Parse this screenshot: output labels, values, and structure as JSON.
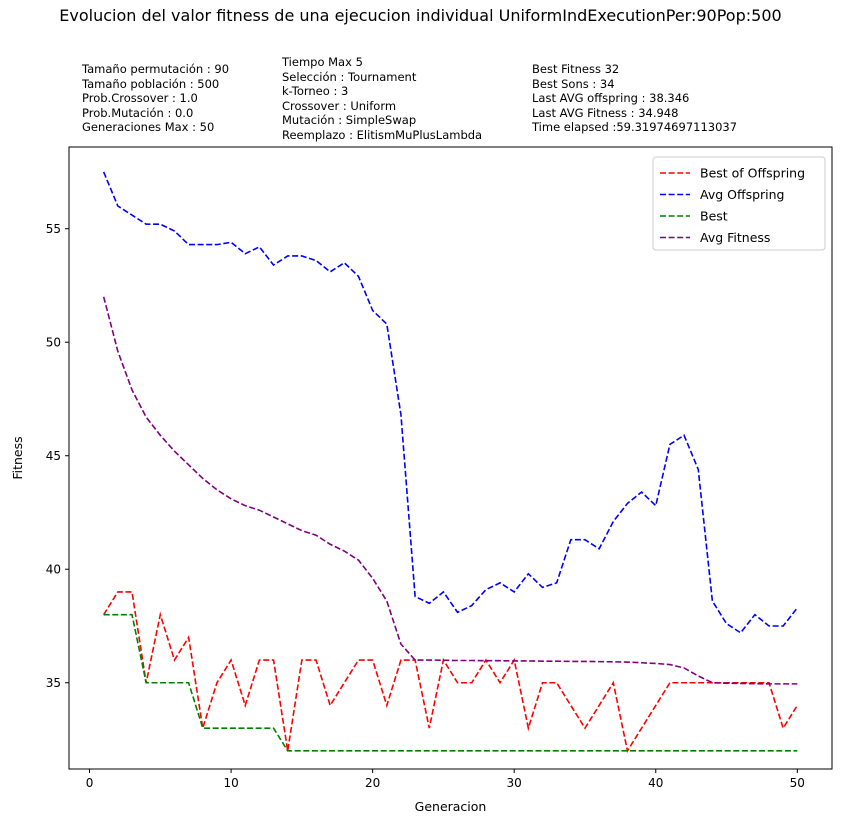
{
  "chart_data": {
    "type": "line",
    "title": "Evolucion del valor fitness de una ejecucion individual UniformIndExecutionPer:90Pop:500",
    "xlabel": "Generacion",
    "ylabel": "Fitness",
    "xlim": [
      -1.45,
      52.45
    ],
    "ylim": [
      31.2,
      58.6
    ],
    "xticks": [
      0,
      10,
      20,
      30,
      40,
      50
    ],
    "yticks": [
      35,
      40,
      45,
      50,
      55
    ],
    "grid": false,
    "legend_position": "top-right",
    "x": [
      1,
      2,
      3,
      4,
      5,
      6,
      7,
      8,
      9,
      10,
      11,
      12,
      13,
      14,
      15,
      16,
      17,
      18,
      19,
      20,
      21,
      22,
      23,
      24,
      25,
      26,
      27,
      28,
      29,
      30,
      31,
      32,
      33,
      34,
      35,
      36,
      37,
      38,
      39,
      40,
      41,
      42,
      43,
      44,
      45,
      46,
      47,
      48,
      49,
      50
    ],
    "series": [
      {
        "name": "Best of Offspring",
        "color": "#ff0000",
        "dash": "dashed",
        "values": [
          38,
          39,
          39,
          35,
          38,
          36,
          37,
          33,
          35,
          36,
          34,
          36,
          36,
          32,
          36,
          36,
          34,
          35,
          36,
          36,
          34,
          36,
          36,
          33,
          36,
          35,
          35,
          36,
          35,
          36,
          33,
          35,
          35,
          34,
          33,
          34,
          35,
          32,
          33,
          34,
          35,
          35,
          35,
          35,
          35,
          35,
          35,
          35,
          33,
          34
        ]
      },
      {
        "name": "Avg Offspring",
        "color": "#0000ff",
        "dash": "dashed",
        "values": [
          57.5,
          56.0,
          55.6,
          55.2,
          55.2,
          54.9,
          54.3,
          54.3,
          54.3,
          54.4,
          53.9,
          54.2,
          53.4,
          53.8,
          53.8,
          53.6,
          53.1,
          53.5,
          52.9,
          51.4,
          50.8,
          46.8,
          38.8,
          38.5,
          39.0,
          38.1,
          38.4,
          39.1,
          39.4,
          39.0,
          39.8,
          39.2,
          39.4,
          41.3,
          41.3,
          40.9,
          42.1,
          42.9,
          43.4,
          42.8,
          45.5,
          45.9,
          44.4,
          38.6,
          37.6,
          37.2,
          38.0,
          37.5,
          37.5,
          38.3
        ]
      },
      {
        "name": "Best",
        "color": "#008000",
        "dash": "dashed",
        "values": [
          38,
          38,
          38,
          35,
          35,
          35,
          35,
          33,
          33,
          33,
          33,
          33,
          33,
          32,
          32,
          32,
          32,
          32,
          32,
          32,
          32,
          32,
          32,
          32,
          32,
          32,
          32,
          32,
          32,
          32,
          32,
          32,
          32,
          32,
          32,
          32,
          32,
          32,
          32,
          32,
          32,
          32,
          32,
          32,
          32,
          32,
          32,
          32,
          32,
          32
        ]
      },
      {
        "name": "Avg Fitness",
        "color": "#800080",
        "dash": "dashed",
        "values": [
          52.0,
          49.6,
          47.9,
          46.7,
          45.9,
          45.2,
          44.6,
          44.0,
          43.5,
          43.1,
          42.8,
          42.6,
          42.3,
          42.0,
          41.7,
          41.5,
          41.1,
          40.8,
          40.4,
          39.6,
          38.6,
          36.7,
          36.0,
          36.0,
          35.99,
          35.98,
          35.98,
          35.97,
          35.97,
          35.96,
          35.96,
          35.95,
          35.95,
          35.94,
          35.94,
          35.93,
          35.92,
          35.91,
          35.88,
          35.85,
          35.8,
          35.65,
          35.3,
          35.0,
          34.98,
          34.97,
          34.96,
          34.95,
          34.95,
          34.95
        ]
      }
    ]
  },
  "info": {
    "col1": [
      "Tamaño permutación : 90",
      "Tamaño población : 500",
      "Prob.Crossover : 1.0",
      "Prob.Mutación : 0.0",
      "Generaciones Max : 50"
    ],
    "col2": [
      "Tiempo Max 5",
      "Selección : Tournament",
      "k-Torneo : 3",
      "Crossover : Uniform",
      "Mutación : SimpleSwap",
      "Reemplazo : ElitismMuPlusLambda"
    ],
    "col3": [
      "Best Fitness 32",
      "Best Sons : 34",
      "Last AVG offspring : 38.346",
      "Last AVG Fitness : 34.948",
      "Time elapsed :59.31974697113037"
    ]
  }
}
